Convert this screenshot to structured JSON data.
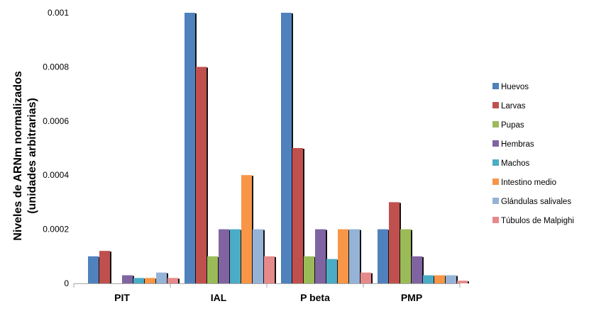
{
  "chart_data": {
    "type": "bar",
    "title": "",
    "xlabel": "",
    "ylabel": "Niveles de ARNm normalizados",
    "ylabel_line2": "(unidades arbitrarias)",
    "ylim": [
      0,
      0.001
    ],
    "yticks": [
      {
        "value": 0,
        "label": "0"
      },
      {
        "value": 0.0002,
        "label": "0.0002"
      },
      {
        "value": 0.0004,
        "label": "0.0004"
      },
      {
        "value": 0.0006,
        "label": "0.0006"
      },
      {
        "value": 0.0008,
        "label": "0.0008"
      },
      {
        "value": 0.001,
        "label": "0.001"
      }
    ],
    "grid": false,
    "legend_position": "right",
    "categories": [
      "PIT",
      "IAL",
      "P beta",
      "PMP"
    ],
    "series": [
      {
        "name": "Huevos",
        "color": "#4F81BD",
        "values": [
          0.0001,
          0.001,
          0.001,
          0.0002
        ]
      },
      {
        "name": "Larvas",
        "color": "#C0504D",
        "values": [
          0.00012,
          0.0008,
          0.0005,
          0.0003
        ]
      },
      {
        "name": "Pupas",
        "color": "#9BBB59",
        "values": [
          0.0,
          0.0001,
          0.0001,
          0.0002
        ]
      },
      {
        "name": "Hembras",
        "color": "#8064A2",
        "values": [
          3e-05,
          0.0002,
          0.0002,
          0.0001
        ]
      },
      {
        "name": "Machos",
        "color": "#4BACC6",
        "values": [
          2e-05,
          0.0002,
          9e-05,
          3e-05
        ]
      },
      {
        "name": "Intestino medio",
        "color": "#F79646",
        "values": [
          2e-05,
          0.0004,
          0.0002,
          3e-05
        ]
      },
      {
        "name": "Glándulas salivales",
        "color": "#95B3D7",
        "values": [
          4e-05,
          0.0002,
          0.0002,
          3e-05
        ]
      },
      {
        "name": "Túbulos de Malpighi",
        "color": "#E6898B",
        "values": [
          2e-05,
          0.0001,
          4e-05,
          1e-05
        ]
      }
    ]
  }
}
